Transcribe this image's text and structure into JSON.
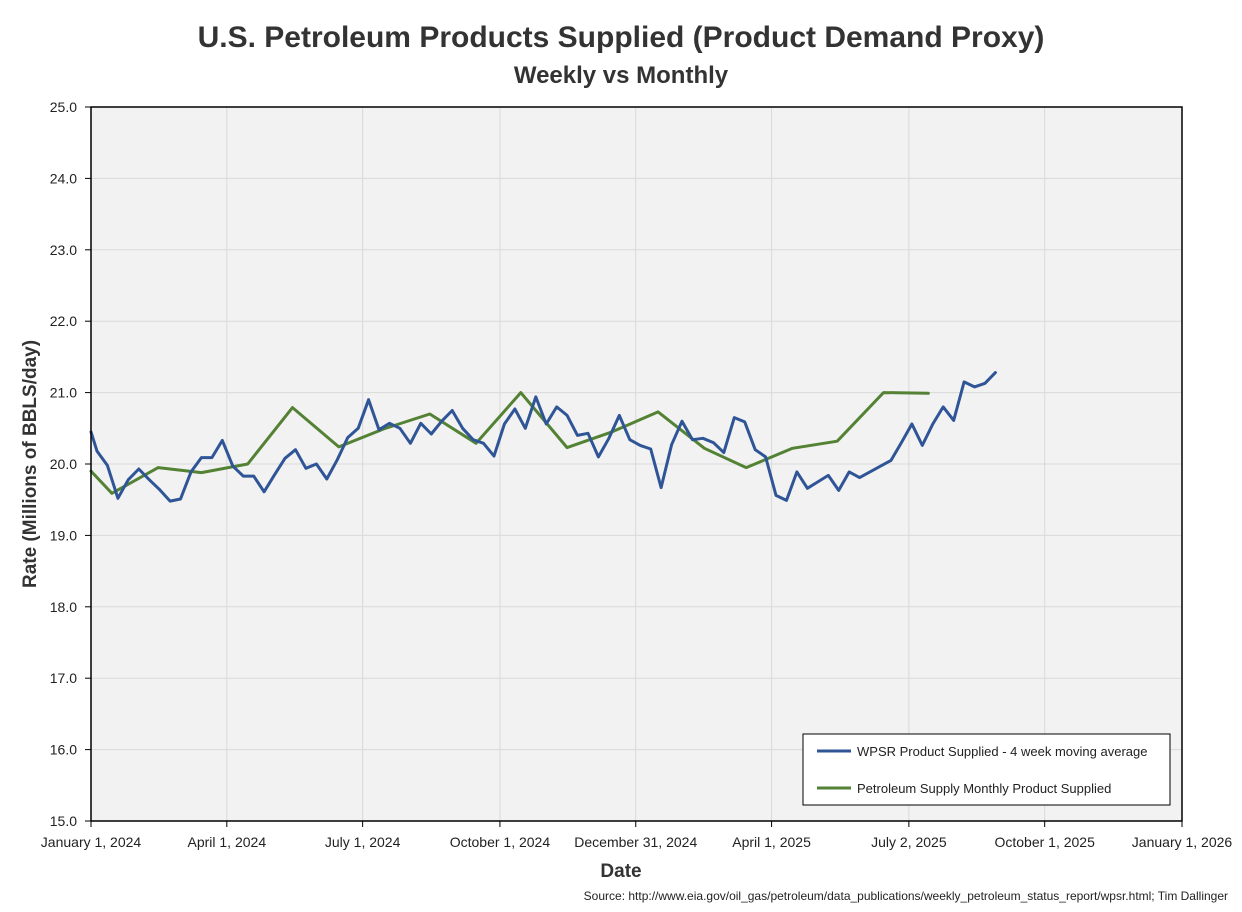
{
  "chart_data": {
    "type": "line",
    "title": "U.S. Petroleum Products Supplied (Product Demand Proxy)",
    "subtitle": "Weekly vs Monthly",
    "xlabel": "Date",
    "ylabel": "Rate (Millions of BBLS/day)",
    "source": "Source: http://www.eia.gov/oil_gas/petroleum/data_publications/weekly_petroleum_status_report/wpsr.html; Tim Dallinger",
    "xlim": [
      "2024-01-01",
      "2026-01-01"
    ],
    "ylim": [
      15,
      25
    ],
    "x_ticks": [
      "2024-01-01",
      "2024-04-01",
      "2024-07-01",
      "2024-10-01",
      "2024-12-31",
      "2025-04-01",
      "2025-07-02",
      "2025-10-01",
      "2026-01-01"
    ],
    "x_tick_labels": [
      "January 1, 2024",
      "April 1, 2024",
      "July 1, 2024",
      "October 1, 2024",
      "December 31, 2024",
      "April 1, 2025",
      "July 2, 2025",
      "October 1, 2025",
      "January 1, 2026"
    ],
    "y_ticks": [
      15,
      16,
      17,
      18,
      19,
      20,
      21,
      22,
      23,
      24,
      25
    ],
    "y_tick_labels": [
      "15.0",
      "16.0",
      "17.0",
      "18.0",
      "19.0",
      "20.0",
      "21.0",
      "22.0",
      "23.0",
      "24.0",
      "25.0"
    ],
    "grid": true,
    "legend_position": "bottom-right",
    "plot_background": "#f2f2f2",
    "series": [
      {
        "name": "WPSR Product Supplied - 4 week moving average",
        "color": "#2f5597",
        "points": [
          [
            "2024-01-01",
            20.45
          ],
          [
            "2024-01-05",
            20.18
          ],
          [
            "2024-01-12",
            19.98
          ],
          [
            "2024-01-19",
            19.52
          ],
          [
            "2024-01-26",
            19.78
          ],
          [
            "2024-02-02",
            19.93
          ],
          [
            "2024-02-09",
            19.78
          ],
          [
            "2024-02-16",
            19.64
          ],
          [
            "2024-02-23",
            19.48
          ],
          [
            "2024-03-01",
            19.51
          ],
          [
            "2024-03-08",
            19.89
          ],
          [
            "2024-03-15",
            20.09
          ],
          [
            "2024-03-22",
            20.09
          ],
          [
            "2024-03-29",
            20.33
          ],
          [
            "2024-04-05",
            19.97
          ],
          [
            "2024-04-12",
            19.83
          ],
          [
            "2024-04-19",
            19.83
          ],
          [
            "2024-04-26",
            19.61
          ],
          [
            "2024-05-03",
            19.85
          ],
          [
            "2024-05-10",
            20.08
          ],
          [
            "2024-05-17",
            20.2
          ],
          [
            "2024-05-24",
            19.94
          ],
          [
            "2024-05-31",
            20.0
          ],
          [
            "2024-06-07",
            19.79
          ],
          [
            "2024-06-14",
            20.06
          ],
          [
            "2024-06-21",
            20.37
          ],
          [
            "2024-06-28",
            20.5
          ],
          [
            "2024-07-05",
            20.9
          ],
          [
            "2024-07-12",
            20.48
          ],
          [
            "2024-07-19",
            20.57
          ],
          [
            "2024-07-26",
            20.5
          ],
          [
            "2024-08-02",
            20.29
          ],
          [
            "2024-08-09",
            20.57
          ],
          [
            "2024-08-16",
            20.42
          ],
          [
            "2024-08-23",
            20.6
          ],
          [
            "2024-08-30",
            20.75
          ],
          [
            "2024-09-06",
            20.5
          ],
          [
            "2024-09-13",
            20.34
          ],
          [
            "2024-09-20",
            20.29
          ],
          [
            "2024-09-27",
            20.11
          ],
          [
            "2024-10-04",
            20.56
          ],
          [
            "2024-10-11",
            20.77
          ],
          [
            "2024-10-18",
            20.5
          ],
          [
            "2024-10-25",
            20.94
          ],
          [
            "2024-11-01",
            20.56
          ],
          [
            "2024-11-08",
            20.8
          ],
          [
            "2024-11-15",
            20.68
          ],
          [
            "2024-11-22",
            20.4
          ],
          [
            "2024-11-29",
            20.43
          ],
          [
            "2024-12-06",
            20.1
          ],
          [
            "2024-12-13",
            20.36
          ],
          [
            "2024-12-20",
            20.68
          ],
          [
            "2024-12-27",
            20.34
          ],
          [
            "2025-01-03",
            20.26
          ],
          [
            "2025-01-10",
            20.21
          ],
          [
            "2025-01-17",
            19.67
          ],
          [
            "2025-01-24",
            20.27
          ],
          [
            "2025-01-31",
            20.6
          ],
          [
            "2025-02-07",
            20.34
          ],
          [
            "2025-02-14",
            20.36
          ],
          [
            "2025-02-21",
            20.3
          ],
          [
            "2025-02-28",
            20.16
          ],
          [
            "2025-03-07",
            20.65
          ],
          [
            "2025-03-14",
            20.59
          ],
          [
            "2025-03-21",
            20.2
          ],
          [
            "2025-03-28",
            20.1
          ],
          [
            "2025-04-04",
            19.56
          ],
          [
            "2025-04-11",
            19.49
          ],
          [
            "2025-04-18",
            19.89
          ],
          [
            "2025-04-25",
            19.66
          ],
          [
            "2025-05-02",
            19.75
          ],
          [
            "2025-05-09",
            19.84
          ],
          [
            "2025-05-16",
            19.63
          ],
          [
            "2025-05-23",
            19.89
          ],
          [
            "2025-05-30",
            19.81
          ],
          [
            "2025-06-20",
            20.05
          ],
          [
            "2025-06-27",
            20.3
          ],
          [
            "2025-07-04",
            20.56
          ],
          [
            "2025-07-11",
            20.26
          ],
          [
            "2025-07-18",
            20.56
          ],
          [
            "2025-07-25",
            20.8
          ],
          [
            "2025-08-01",
            20.61
          ],
          [
            "2025-08-08",
            21.15
          ],
          [
            "2025-08-15",
            21.08
          ],
          [
            "2025-08-22",
            21.13
          ],
          [
            "2025-08-29",
            21.28
          ]
        ]
      },
      {
        "name": "Petroleum Supply Monthly Product Supplied",
        "color": "#548235",
        "points": [
          [
            "2024-01-01",
            19.9
          ],
          [
            "2024-01-15",
            19.59
          ],
          [
            "2024-02-15",
            19.95
          ],
          [
            "2024-03-15",
            19.88
          ],
          [
            "2024-04-15",
            20.0
          ],
          [
            "2024-05-15",
            20.79
          ],
          [
            "2024-06-15",
            20.24
          ],
          [
            "2024-07-15",
            20.49
          ],
          [
            "2024-08-15",
            20.7
          ],
          [
            "2024-09-15",
            20.29
          ],
          [
            "2024-10-15",
            21.0
          ],
          [
            "2024-11-15",
            20.23
          ],
          [
            "2024-12-15",
            20.45
          ],
          [
            "2025-01-15",
            20.73
          ],
          [
            "2025-02-15",
            20.22
          ],
          [
            "2025-03-15",
            19.95
          ],
          [
            "2025-04-15",
            20.22
          ],
          [
            "2025-05-15",
            20.32
          ],
          [
            "2025-06-15",
            21.0
          ],
          [
            "2025-07-15",
            20.99
          ]
        ]
      }
    ]
  }
}
